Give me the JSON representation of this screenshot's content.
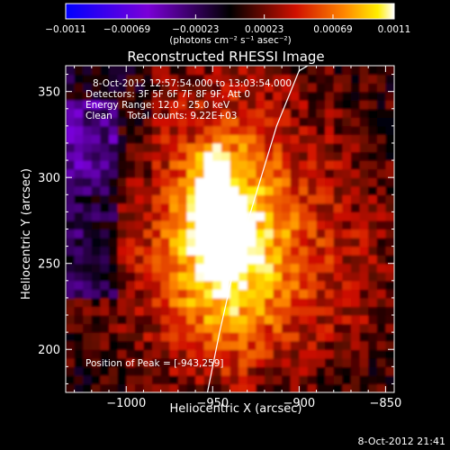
{
  "chart_data": {
    "type": "heatmap",
    "title": "Reconstructed RHESSI Image",
    "xlabel": "Heliocentric X (arcsec)",
    "ylabel": "Heliocentric Y (arcsec)",
    "xlim": [
      -1035,
      -845
    ],
    "ylim": [
      175,
      365
    ],
    "x_ticks": [
      -1000,
      -950,
      -900,
      -850
    ],
    "x_tick_labels": [
      "−1000",
      "−950",
      "−900",
      "−850"
    ],
    "y_ticks": [
      200,
      250,
      300,
      350
    ],
    "y_tick_labels": [
      "200",
      "250",
      "300",
      "350"
    ],
    "colorbar": {
      "range": [
        -0.0011,
        0.0011
      ],
      "ticks": [
        -0.0011,
        -0.00069,
        -0.00023,
        0.00023,
        0.00069,
        0.0011
      ],
      "tick_labels": [
        "−0.0011",
        "−0.00069",
        "−0.00023",
        "0.00023",
        "0.00069",
        "0.0011"
      ],
      "unit_label": "(photons cm⁻² s⁻¹ asec⁻²)",
      "colormap": "blue-purple-black-red-orange-yellow-white"
    },
    "annotations": [
      "8-Oct-2012 12:57:54.000 to 13:03:54.000",
      "Detectors: 3F 5F 6F 7F 8F 9F, Att 0",
      "Energy Range: 12.0 - 25.0 keV",
      "Clean     Total counts: 9.22E+03",
      "Position of Peak = [-943,259]"
    ],
    "peak": {
      "x": -943,
      "y": 259
    },
    "limb_curve": {
      "description": "solar limb",
      "x": [
        -953,
        -946,
        -937,
        -925,
        -913,
        -900,
        -895
      ],
      "y": [
        175,
        210,
        250,
        290,
        330,
        362,
        365
      ]
    },
    "timestamp": "8-Oct-2012 21:41"
  }
}
